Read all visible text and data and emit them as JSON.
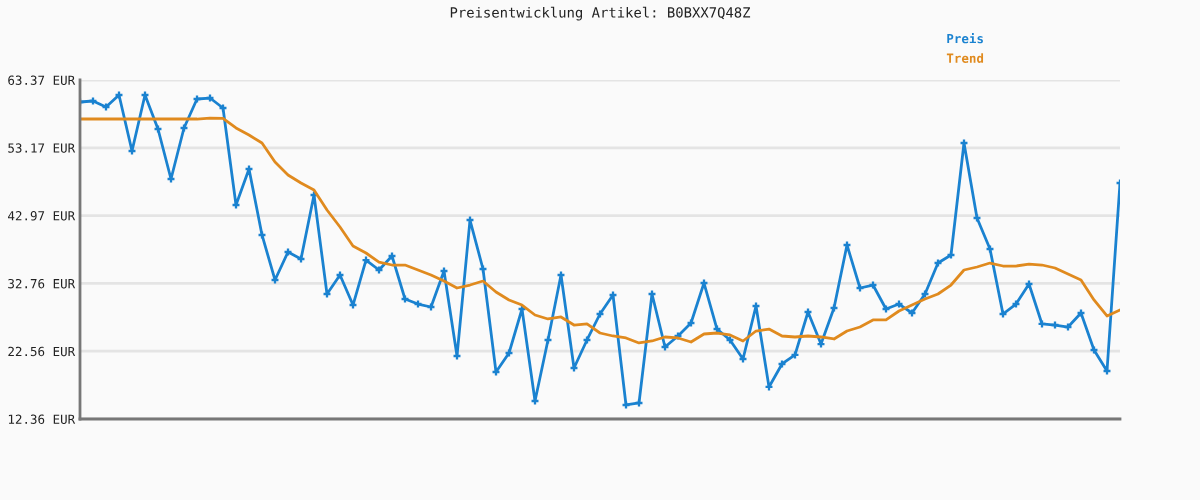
{
  "chart_data": {
    "type": "line",
    "title": "Preisentwicklung Artikel: B0BXX7Q48Z",
    "categories": [
      null,
      null,
      null,
      null,
      null,
      null,
      null,
      null,
      null,
      null,
      null,
      null,
      null,
      null,
      null,
      null,
      null,
      null,
      null,
      null,
      null,
      null,
      null,
      null,
      null,
      null,
      null,
      null,
      null,
      null,
      null,
      null,
      null,
      null,
      null,
      null,
      null,
      null,
      null,
      null,
      null,
      null,
      null,
      null,
      null,
      null,
      null,
      null,
      null,
      null,
      null,
      null,
      null,
      null,
      null,
      null,
      null,
      null,
      null,
      null,
      null,
      null,
      null,
      null,
      null,
      null,
      null,
      null,
      null,
      null,
      null,
      null,
      null,
      null,
      null,
      null,
      null,
      null,
      null,
      null,
      null
    ],
    "series": [
      {
        "name": "Preis",
        "color": "#1a82d0",
        "marker": "cross",
        "values": [
          60.06,
          60.21,
          59.31,
          61.11,
          52.69,
          61.11,
          56.0,
          48.47,
          56.15,
          60.51,
          60.66,
          59.16,
          44.56,
          49.98,
          40.05,
          33.28,
          37.49,
          36.44,
          46.07,
          31.17,
          34.03,
          29.51,
          36.28,
          34.78,
          36.89,
          30.42,
          29.66,
          29.21,
          34.63,
          21.84,
          42.3,
          34.93,
          19.43,
          22.29,
          28.91,
          15.07,
          24.25,
          34.03,
          20.03,
          24.25,
          28.16,
          31.02,
          14.47,
          14.77,
          31.17,
          23.19,
          24.85,
          26.81,
          32.82,
          25.9,
          24.25,
          21.39,
          29.36,
          17.18,
          20.64,
          22.0,
          28.46,
          23.64,
          29.06,
          38.54,
          32.07,
          32.52,
          28.91,
          29.66,
          28.31,
          31.17,
          35.83,
          37.04,
          53.89,
          42.6,
          37.94,
          28.16,
          29.66,
          32.67,
          26.66,
          26.5,
          26.2,
          28.31,
          22.74,
          19.58,
          47.87
        ]
      },
      {
        "name": "Trend",
        "color": "#e08a1e",
        "marker": "none",
        "values": [
          57.5,
          57.5,
          57.5,
          57.5,
          57.5,
          57.5,
          57.5,
          57.5,
          57.5,
          57.5,
          57.65,
          57.6,
          56.15,
          55.1,
          53.89,
          51.03,
          49.08,
          47.87,
          46.82,
          43.81,
          41.25,
          38.39,
          37.34,
          35.98,
          35.53,
          35.53,
          34.78,
          34.03,
          33.12,
          32.07,
          32.52,
          33.12,
          31.47,
          30.27,
          29.51,
          28.01,
          27.41,
          27.71,
          26.5,
          26.66,
          25.3,
          24.85,
          24.55,
          23.8,
          24.1,
          24.7,
          24.55,
          23.94,
          25.15,
          25.3,
          25.0,
          24.1,
          25.6,
          25.9,
          24.85,
          24.7,
          24.85,
          24.7,
          24.4,
          25.6,
          26.2,
          27.26,
          27.26,
          28.61,
          29.51,
          30.42,
          31.17,
          32.52,
          34.78,
          35.23,
          35.83,
          35.38,
          35.38,
          35.68,
          35.53,
          35.08,
          34.18,
          33.28,
          30.27,
          27.86,
          28.76
        ]
      }
    ],
    "ylim": [
      12.36,
      63.37
    ],
    "yticks": [
      {
        "value": 12.36,
        "label": "12.36 EUR"
      },
      {
        "value": 22.56,
        "label": "22.56 EUR"
      },
      {
        "value": 32.76,
        "label": "32.76 EUR"
      },
      {
        "value": 42.97,
        "label": "42.97 EUR"
      },
      {
        "value": 53.17,
        "label": "53.17 EUR"
      },
      {
        "value": 63.37,
        "label": "63.37 EUR"
      }
    ],
    "grid": "y",
    "legend": "top right",
    "tick_labels": "y",
    "line_style": "solid"
  }
}
